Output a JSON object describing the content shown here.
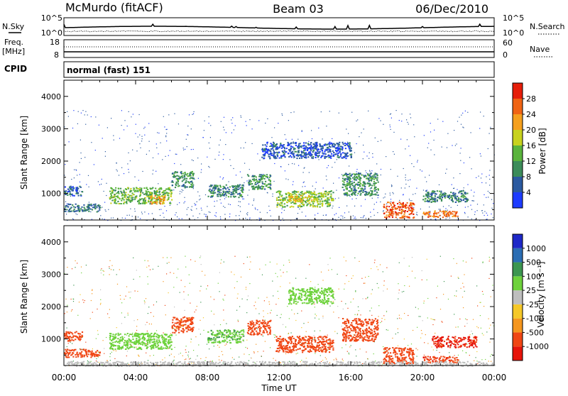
{
  "header": {
    "station": "McMurdo (fitACF)",
    "beam": "Beam 03",
    "date": "06/Dec/2010"
  },
  "strip_labels": {
    "nsky": "N.Sky",
    "nsky_top": "10^5",
    "nsky_bottom": "10^0",
    "nsearch": "N.Search",
    "nsearch_top": "10^5",
    "nsearch_bottom": "10^0",
    "freq": "Freq.",
    "freq_unit": "[MHz]",
    "freq_top": "18",
    "freq_bottom": "8",
    "nave": "Nave",
    "nave_top": "60",
    "nave_bottom": "0",
    "cpid": "CPID",
    "cpid_value": "normal (fast) 151"
  },
  "x_axis": {
    "label": "Time UT",
    "ticks": [
      "00:00",
      "04:00",
      "08:00",
      "12:00",
      "16:00",
      "20:00",
      "00:00"
    ]
  },
  "colors": {
    "power": [
      "#1e3cff",
      "#2c5aa0",
      "#3c8c5a",
      "#5ab43c",
      "#c8d21e",
      "#f5a01e",
      "#f06414",
      "#e61e0a"
    ],
    "velocity": [
      "#e6140a",
      "#f04614",
      "#f5961e",
      "#f5c828",
      "#bebebe",
      "#6ed23c",
      "#3c9650",
      "#2c6eb4",
      "#1e28c8"
    ]
  },
  "chart_data": [
    {
      "type": "heatmap",
      "panel": "power",
      "ylabel": "Slant Range [km]",
      "ylim": [
        180,
        4500
      ],
      "yticks": [
        "1000",
        "2000",
        "3000",
        "4000"
      ],
      "xlim": [
        0,
        24
      ],
      "colorbar": {
        "label": "Power [dB]",
        "ticks": [
          "28",
          "24",
          "20",
          "16",
          "12",
          "8",
          "4"
        ],
        "range": [
          0,
          32
        ]
      },
      "echo_regions": [
        {
          "t0": 0.0,
          "t1": 1.0,
          "r0": 950,
          "r1": 1250,
          "power": 6
        },
        {
          "t0": 0.0,
          "t1": 2.0,
          "r0": 450,
          "r1": 700,
          "power": 8
        },
        {
          "t0": 2.5,
          "t1": 6.0,
          "r0": 700,
          "r1": 1200,
          "power": 14
        },
        {
          "t0": 4.8,
          "t1": 5.6,
          "r0": 700,
          "r1": 950,
          "power": 22
        },
        {
          "t0": 6.0,
          "t1": 7.2,
          "r0": 1200,
          "r1": 1700,
          "power": 10
        },
        {
          "t0": 8.0,
          "t1": 10.0,
          "r0": 900,
          "r1": 1300,
          "power": 9
        },
        {
          "t0": 10.2,
          "t1": 11.5,
          "r0": 1150,
          "r1": 1600,
          "power": 11
        },
        {
          "t0": 11.8,
          "t1": 15.0,
          "r0": 600,
          "r1": 1100,
          "power": 15
        },
        {
          "t0": 12.5,
          "t1": 13.8,
          "r0": 750,
          "r1": 950,
          "power": 20
        },
        {
          "t0": 15.5,
          "t1": 17.5,
          "r0": 950,
          "r1": 1650,
          "power": 10
        },
        {
          "t0": 17.8,
          "t1": 19.5,
          "r0": 250,
          "r1": 750,
          "power": 27
        },
        {
          "t0": 20.0,
          "t1": 22.0,
          "r0": 280,
          "r1": 480,
          "power": 25
        },
        {
          "t0": 20.0,
          "t1": 22.5,
          "r0": 750,
          "r1": 1100,
          "power": 9
        },
        {
          "t0": 11.0,
          "t1": 16.0,
          "r0": 2100,
          "r1": 2600,
          "power": 5
        }
      ]
    },
    {
      "type": "heatmap",
      "panel": "velocity",
      "ylabel": "Slant Range [km]",
      "ylim": [
        180,
        4500
      ],
      "yticks": [
        "1000",
        "2000",
        "3000",
        "4000"
      ],
      "xlim": [
        0,
        24
      ],
      "colorbar": {
        "label": "Velocity [m s⁻¹]",
        "ticks": [
          "1000",
          "500",
          "100",
          "25",
          "-25",
          "-100",
          "-500",
          "-1000"
        ],
        "range": [
          -1000,
          1000
        ]
      },
      "echo_regions": [
        {
          "t0": 0.0,
          "t1": 1.0,
          "r0": 950,
          "r1": 1250,
          "velocity": -300
        },
        {
          "t0": 0.0,
          "t1": 2.0,
          "r0": 450,
          "r1": 700,
          "velocity": -200
        },
        {
          "t0": 2.5,
          "t1": 6.0,
          "r0": 700,
          "r1": 1200,
          "velocity": 60
        },
        {
          "t0": 6.0,
          "t1": 7.2,
          "r0": 1200,
          "r1": 1700,
          "velocity": -150
        },
        {
          "t0": 8.0,
          "t1": 10.0,
          "r0": 900,
          "r1": 1300,
          "velocity": 80
        },
        {
          "t0": 10.2,
          "t1": 11.5,
          "r0": 1150,
          "r1": 1600,
          "velocity": -200
        },
        {
          "t0": 11.8,
          "t1": 15.0,
          "r0": 600,
          "r1": 1100,
          "velocity": -250
        },
        {
          "t0": 15.5,
          "t1": 17.5,
          "r0": 950,
          "r1": 1650,
          "velocity": -300
        },
        {
          "t0": 17.8,
          "t1": 19.5,
          "r0": 250,
          "r1": 750,
          "velocity": -350
        },
        {
          "t0": 20.0,
          "t1": 22.0,
          "r0": 280,
          "r1": 480,
          "velocity": -400
        },
        {
          "t0": 20.5,
          "t1": 23.0,
          "r0": 750,
          "r1": 1100,
          "velocity": -600
        },
        {
          "t0": 12.5,
          "t1": 15.0,
          "r0": 2100,
          "r1": 2600,
          "velocity": 60
        },
        {
          "t0": 0.0,
          "t1": 24.0,
          "r0": 180,
          "r1": 320,
          "velocity": 0
        }
      ]
    }
  ]
}
